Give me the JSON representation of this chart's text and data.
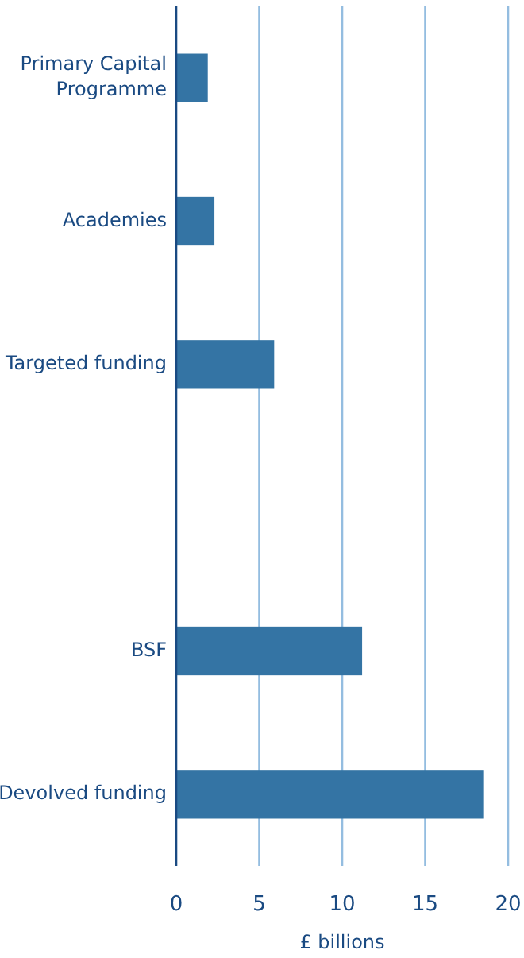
{
  "chart_data": {
    "type": "bar",
    "orientation": "horizontal",
    "xlabel": "£ billions",
    "categories": [
      "Primary Capital Programme",
      "Academies",
      "Targeted funding",
      null,
      "BSF",
      "Devolved funding"
    ],
    "values": [
      1.9,
      2.3,
      5.9,
      null,
      11.2,
      18.5
    ],
    "color": "#3474a4",
    "xlim": [
      0,
      20
    ],
    "xticks": [
      0,
      5,
      10,
      15,
      20
    ],
    "grid": "x"
  }
}
